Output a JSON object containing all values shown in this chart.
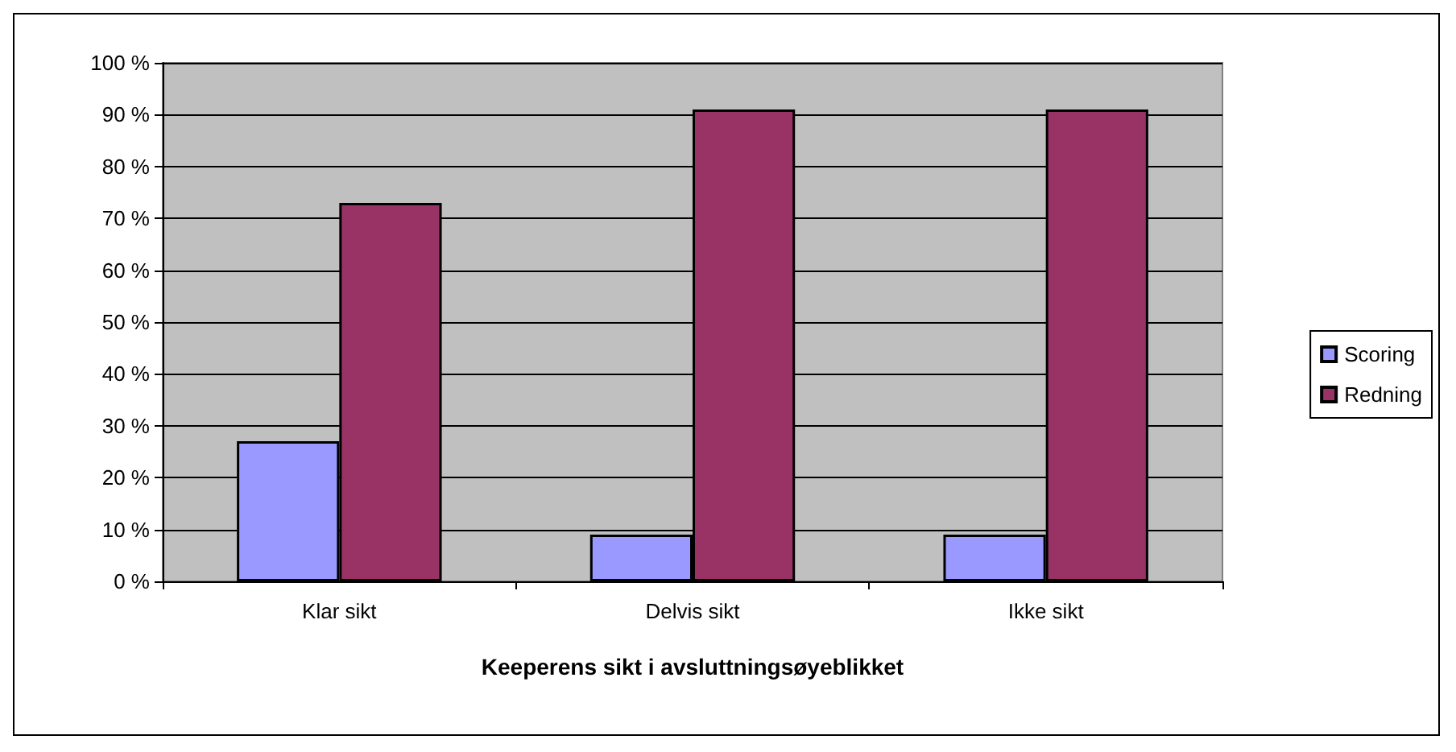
{
  "chart_data": {
    "type": "bar",
    "xlabel": "Keeperens sikt i avsluttningsøyeblikket",
    "categories": [
      "Klar sikt",
      "Delvis sikt",
      "Ikke sikt"
    ],
    "series": [
      {
        "name": "Scoring",
        "color": "#9999ff",
        "values": [
          27,
          9,
          9
        ]
      },
      {
        "name": "Redning",
        "color": "#993366",
        "values": [
          73,
          91,
          91
        ]
      }
    ],
    "ylim": [
      0,
      100
    ],
    "yticks": [
      {
        "value": 0,
        "label": "0 %"
      },
      {
        "value": 10,
        "label": "10 %"
      },
      {
        "value": 20,
        "label": "20 %"
      },
      {
        "value": 30,
        "label": "30 %"
      },
      {
        "value": 40,
        "label": "40 %"
      },
      {
        "value": 50,
        "label": "50 %"
      },
      {
        "value": 60,
        "label": "60 %"
      },
      {
        "value": 70,
        "label": "70 %"
      },
      {
        "value": 80,
        "label": "80 %"
      },
      {
        "value": 90,
        "label": "90 %"
      },
      {
        "value": 100,
        "label": "100 %"
      }
    ],
    "grid": "y",
    "legend": "right"
  }
}
